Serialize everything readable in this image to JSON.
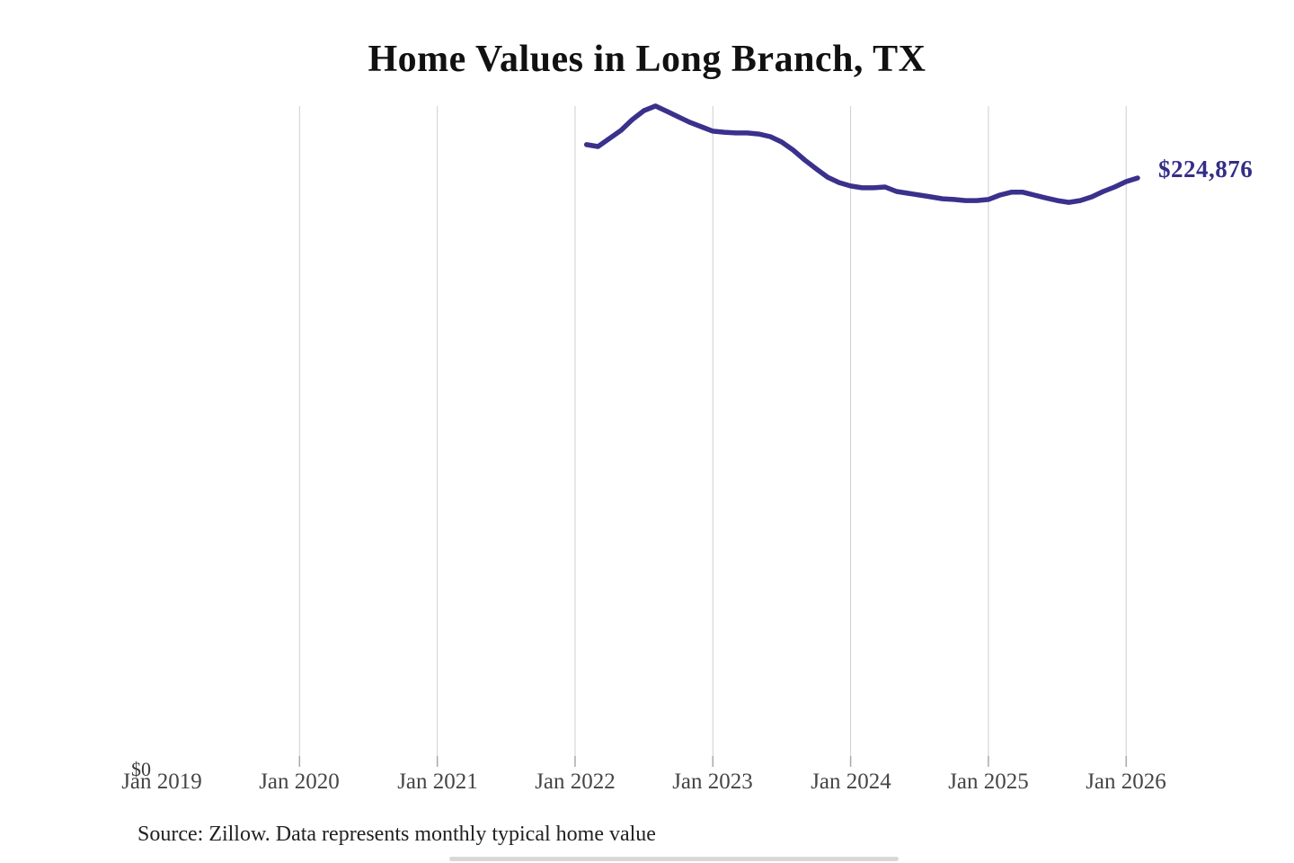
{
  "page": {
    "background_color": "#ffffff"
  },
  "header": {
    "title": "Home Values in Long Branch, TX"
  },
  "chart_data": {
    "type": "line",
    "title": "Home Values in Long Branch, TX",
    "series_name": "Monthly typical home value",
    "unit": "USD",
    "months": [
      "Feb 2022",
      "Mar 2022",
      "Apr 2022",
      "May 2022",
      "Jun 2022",
      "Jul 2022",
      "Aug 2022",
      "Sep 2022",
      "Oct 2022",
      "Nov 2022",
      "Dec 2022",
      "Jan 2023",
      "Feb 2023",
      "Mar 2023",
      "Apr 2023",
      "May 2023",
      "Jun 2023",
      "Jul 2023",
      "Aug 2023",
      "Sep 2023",
      "Oct 2023",
      "Nov 2023",
      "Dec 2023",
      "Jan 2024",
      "Feb 2024",
      "Mar 2024",
      "Apr 2024",
      "May 2024",
      "Jun 2024",
      "Jul 2024",
      "Aug 2024",
      "Sep 2024",
      "Oct 2024",
      "Nov 2024",
      "Dec 2024",
      "Jan 2025",
      "Feb 2025",
      "Mar 2025",
      "Apr 2025",
      "May 2025",
      "Jun 2025",
      "Jul 2025",
      "Aug 2025",
      "Sep 2025",
      "Oct 2025",
      "Nov 2025",
      "Dec 2025",
      "Jan 2026",
      "Feb 2026"
    ],
    "values": [
      237700,
      237000,
      240100,
      243200,
      247400,
      250800,
      252600,
      250500,
      248400,
      246300,
      244600,
      242900,
      242500,
      242200,
      242200,
      241800,
      240800,
      238700,
      235600,
      231800,
      228400,
      225200,
      223100,
      221800,
      221100,
      221100,
      221400,
      219700,
      219000,
      218300,
      217600,
      216900,
      216600,
      216200,
      216200,
      216600,
      218300,
      219400,
      219400,
      218300,
      217200,
      216200,
      215500,
      216200,
      217600,
      219700,
      221400,
      223500,
      224876
    ],
    "end_value": 224876,
    "end_label": "$224,876",
    "y_zero_label": "$0",
    "xticklabels": [
      "Jan 2019",
      "Jan 2020",
      "Jan 2021",
      "Jan 2022",
      "Jan 2023",
      "Jan 2024",
      "Jan 2025",
      "Jan 2026"
    ],
    "xtick_years": [
      2019,
      2020,
      2021,
      2022,
      2023,
      2024,
      2025,
      2026
    ],
    "gridline_years": [
      2020,
      2021,
      2022,
      2023,
      2024,
      2025,
      2026
    ],
    "xlim": [
      2019,
      2026.45
    ],
    "ylim": [
      0,
      260000
    ],
    "grid": "vertical-only",
    "legend": "none",
    "line_color": "#39318c",
    "label_color": "#332e87",
    "grid_color": "#cfcfcf",
    "tick_color": "#a9a9a9"
  },
  "footer": {
    "source_note": "Source: Zillow. Data represents monthly typical home value"
  }
}
